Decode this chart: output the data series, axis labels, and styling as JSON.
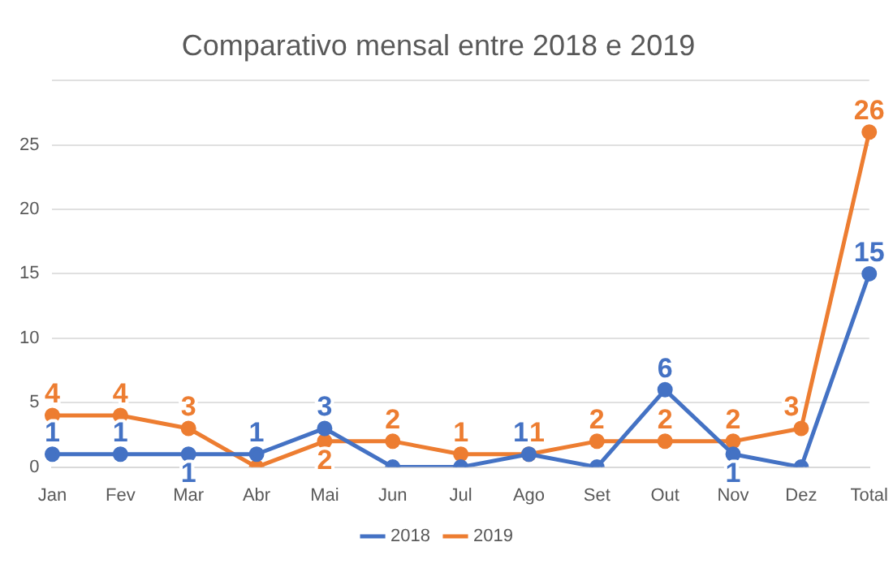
{
  "chart_data": {
    "type": "line",
    "title": "Comparativo mensal entre 2018 e 2019",
    "categories": [
      "Jan",
      "Fev",
      "Mar",
      "Abr",
      "Mai",
      "Jun",
      "Jul",
      "Ago",
      "Set",
      "Out",
      "Nov",
      "Dez",
      "Total"
    ],
    "series": [
      {
        "name": "2018",
        "color": "#4472c4",
        "values": [
          1,
          1,
          1,
          1,
          3,
          0,
          0,
          1,
          0,
          6,
          1,
          0,
          15
        ],
        "value_labels": [
          "1",
          "1",
          "1",
          "1",
          "3",
          null,
          null,
          "1",
          null,
          "6",
          "1",
          null,
          "15"
        ]
      },
      {
        "name": "2019",
        "color": "#ed7d31",
        "values": [
          4,
          4,
          3,
          0,
          2,
          2,
          1,
          1,
          2,
          2,
          2,
          3,
          26
        ],
        "value_labels": [
          "4",
          "4",
          "3",
          null,
          "2",
          "2",
          "1",
          "1",
          "2",
          "2",
          "2",
          "3",
          "26"
        ]
      }
    ],
    "ylim": [
      0,
      30
    ],
    "yticks": [
      0,
      5,
      10,
      15,
      20,
      25,
      {
        "value": 30,
        "label": null
      }
    ],
    "grid": "y",
    "legend": "bottom",
    "marker": "circle",
    "line_style": "solid"
  }
}
